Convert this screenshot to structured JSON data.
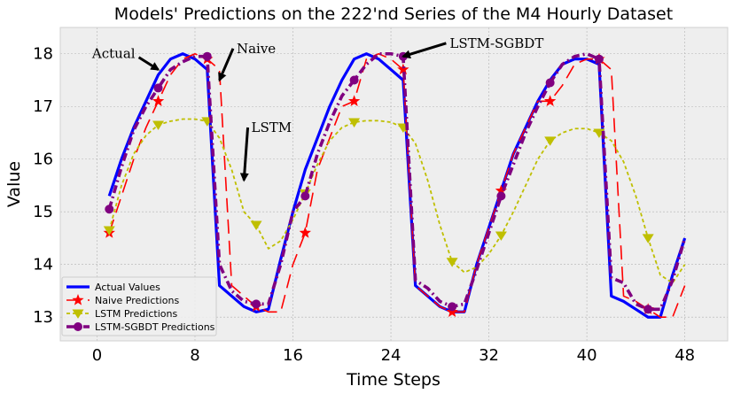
{
  "chart_data": {
    "type": "line",
    "title": "Models' Predictions on the 222'nd Series of the M4 Hourly Dataset",
    "xlabel": "Time Steps",
    "ylabel": "Value",
    "xlim": [
      -3,
      51.5
    ],
    "ylim": [
      12.55,
      18.5
    ],
    "xticks": [
      0,
      8,
      16,
      24,
      32,
      40,
      48
    ],
    "yticks": [
      13,
      14,
      15,
      16,
      17,
      18
    ],
    "grid": true,
    "legend_position": "lower-left",
    "x": [
      1,
      2,
      3,
      4,
      5,
      6,
      7,
      8,
      9,
      10,
      11,
      12,
      13,
      14,
      15,
      16,
      17,
      18,
      19,
      20,
      21,
      22,
      23,
      24,
      25,
      26,
      27,
      28,
      29,
      30,
      31,
      32,
      33,
      34,
      35,
      36,
      37,
      38,
      39,
      40,
      41,
      42,
      43,
      44,
      45,
      46,
      47,
      48
    ],
    "series": [
      {
        "name": "Actual Values",
        "color": "#0000ff",
        "style": "solid",
        "marker": "none",
        "values": [
          15.3,
          16.0,
          16.6,
          17.1,
          17.6,
          17.9,
          18.0,
          17.9,
          17.7,
          13.6,
          13.4,
          13.2,
          13.1,
          13.15,
          14.1,
          15.0,
          15.8,
          16.4,
          17.0,
          17.5,
          17.9,
          18.0,
          17.9,
          17.7,
          17.5,
          13.6,
          13.4,
          13.2,
          13.1,
          13.1,
          14.0,
          14.7,
          15.4,
          16.1,
          16.6,
          17.1,
          17.5,
          17.8,
          17.9,
          17.9,
          17.8,
          13.4,
          13.3,
          13.15,
          13.0,
          13.0,
          13.8,
          14.5
        ]
      },
      {
        "name": "Naive Predictions",
        "color": "#ff0000",
        "style": "longdash",
        "marker": "star",
        "values": [
          14.6,
          15.3,
          16.0,
          16.6,
          17.1,
          17.6,
          17.9,
          18.0,
          17.9,
          17.7,
          13.6,
          13.4,
          13.2,
          13.1,
          13.1,
          14.0,
          14.6,
          15.8,
          16.4,
          17.0,
          17.1,
          17.9,
          18.0,
          17.9,
          17.7,
          13.6,
          13.4,
          13.2,
          13.1,
          13.1,
          14.0,
          14.7,
          15.4,
          16.1,
          16.6,
          17.1,
          17.1,
          17.4,
          17.8,
          17.9,
          17.9,
          17.7,
          13.4,
          13.3,
          13.15,
          13.0,
          13.0,
          13.6
        ]
      },
      {
        "name": "LSTM Predictions",
        "color": "#bfbf00",
        "style": "dotted",
        "marker": "triangle-down",
        "values": [
          14.65,
          15.5,
          16.1,
          16.45,
          16.65,
          16.72,
          16.76,
          16.76,
          16.72,
          16.4,
          15.8,
          15.0,
          14.75,
          14.3,
          14.45,
          14.85,
          15.35,
          15.9,
          16.35,
          16.6,
          16.7,
          16.73,
          16.73,
          16.7,
          16.6,
          16.3,
          15.6,
          14.75,
          14.05,
          13.85,
          13.95,
          14.2,
          14.55,
          15.0,
          15.5,
          16.0,
          16.35,
          16.5,
          16.58,
          16.58,
          16.5,
          16.35,
          15.95,
          15.3,
          14.5,
          13.8,
          13.65,
          14.0
        ]
      },
      {
        "name": "LSTM-SGBDT Predictions",
        "color": "#800080",
        "style": "dashdot",
        "marker": "circle",
        "values": [
          15.05,
          15.85,
          16.55,
          17.0,
          17.35,
          17.7,
          17.85,
          17.95,
          17.95,
          14.0,
          13.5,
          13.3,
          13.25,
          13.25,
          14.0,
          15.0,
          15.3,
          16.1,
          16.7,
          17.2,
          17.5,
          17.8,
          18.0,
          18.0,
          17.95,
          13.7,
          13.55,
          13.3,
          13.2,
          13.25,
          13.9,
          14.6,
          15.3,
          15.9,
          16.5,
          17.0,
          17.45,
          17.8,
          17.95,
          18.0,
          17.9,
          13.75,
          13.65,
          13.25,
          13.15,
          13.15,
          13.7,
          14.5
        ]
      }
    ],
    "annotations": [
      {
        "text": "Actual",
        "target": [
          5,
          17.7
        ],
        "text_at": [
          -0.4,
          18.0
        ]
      },
      {
        "text": "Naive",
        "target": [
          10,
          17.5
        ],
        "text_at": [
          11.4,
          18.1
        ]
      },
      {
        "text": "LSTM",
        "target": [
          12,
          15.6
        ],
        "text_at": [
          12.6,
          16.6
        ]
      },
      {
        "text": "LSTM-SGBDT",
        "target": [
          25,
          17.95
        ],
        "text_at": [
          28.8,
          18.2
        ]
      }
    ]
  }
}
